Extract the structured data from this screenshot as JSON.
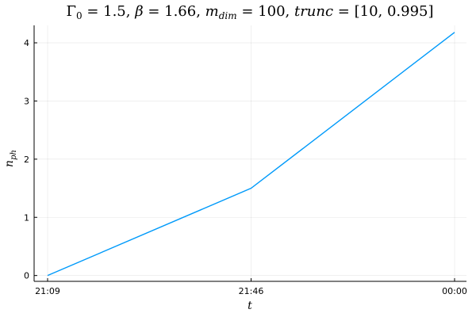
{
  "chart_data": {
    "type": "line",
    "title": "Γ₀ = 1.5, β = 1.66, m_dim = 100, trunc = [10, 0.995]",
    "title_parts": {
      "gamma": "Γ",
      "gamma_sub": "0",
      "gamma_val": " = 1.5, ",
      "beta": "β",
      "beta_val": " = 1.66, ",
      "m": "m",
      "m_sub": "dim",
      "m_val": " = 100, ",
      "trunc": "trunc",
      "trunc_val": " = [10,  0.995]"
    },
    "xlabel": "t",
    "ylabel": "n",
    "ylabel_sub": "ph",
    "x_ticks": [
      "21:09",
      "21:46",
      "00:00"
    ],
    "y_ticks": [
      0,
      1,
      2,
      3,
      4
    ],
    "ylim": [
      -0.1,
      4.3
    ],
    "grid": true,
    "series": [
      {
        "color": "#009AFA",
        "x": [
          "21:09",
          "21:46",
          "00:00"
        ],
        "y": [
          0.0,
          1.5,
          4.18
        ]
      }
    ]
  }
}
